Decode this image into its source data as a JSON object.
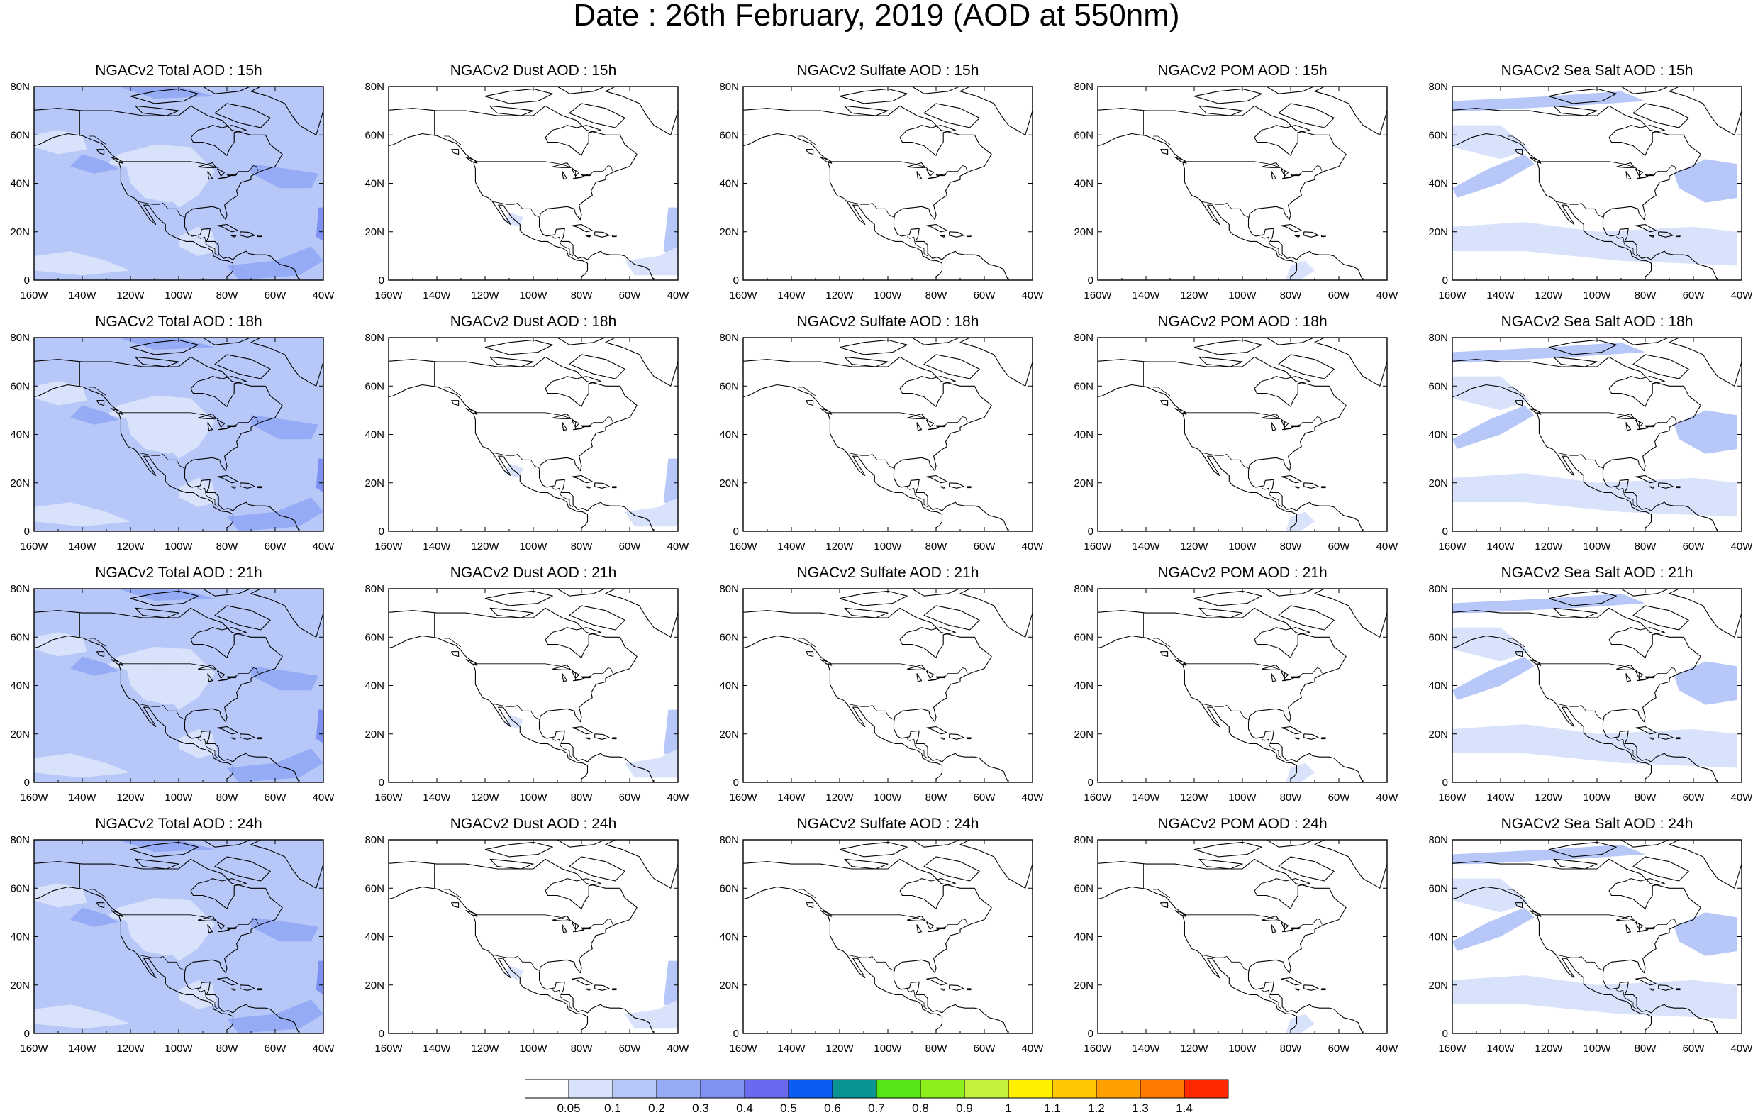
{
  "title": "Date : 26th February, 2019 (AOD at 550nm)",
  "map": {
    "lon_ticks": [
      "160W",
      "140W",
      "120W",
      "100W",
      "80W",
      "60W",
      "40W"
    ],
    "lat_ticks": [
      "0",
      "20N",
      "40N",
      "60N",
      "80N"
    ],
    "lon_range": [
      -160,
      -40
    ],
    "lat_range": [
      0,
      80
    ]
  },
  "panels": [
    [
      "NGACv2 Total AOD : 15h",
      "NGACv2 Dust AOD : 15h",
      "NGACv2 Sulfate AOD : 15h",
      "NGACv2 POM AOD : 15h",
      "NGACv2 Sea Salt AOD : 15h"
    ],
    [
      "NGACv2 Total AOD : 18h",
      "NGACv2 Dust AOD : 18h",
      "NGACv2 Sulfate AOD : 18h",
      "NGACv2 POM AOD : 18h",
      "NGACv2 Sea Salt AOD : 18h"
    ],
    [
      "NGACv2 Total AOD : 21h",
      "NGACv2 Dust AOD : 21h",
      "NGACv2 Sulfate AOD : 21h",
      "NGACv2 POM AOD : 21h",
      "NGACv2 Sea Salt AOD : 21h"
    ],
    [
      "NGACv2 Total AOD : 24h",
      "NGACv2 Dust AOD : 24h",
      "NGACv2 Sulfate AOD : 24h",
      "NGACv2 POM AOD : 24h",
      "NGACv2 Sea Salt  AOD : 24h"
    ]
  ],
  "colorbar": {
    "labels": [
      "0.05",
      "0.1",
      "0.2",
      "0.3",
      "0.4",
      "0.5",
      "0.6",
      "0.7",
      "0.8",
      "0.9",
      "1",
      "1.1",
      "1.2",
      "1.3",
      "1.4"
    ],
    "colors": [
      "#ffffff",
      "#d8e2fb",
      "#b7c7f8",
      "#96abf5",
      "#7f92f4",
      "#6a6af0",
      "#0a5cf5",
      "#0a9595",
      "#55e61a",
      "#8ef01a",
      "#c4f23c",
      "#fff000",
      "#ffc800",
      "#ffa000",
      "#ff7800",
      "#ff2a00"
    ]
  }
}
